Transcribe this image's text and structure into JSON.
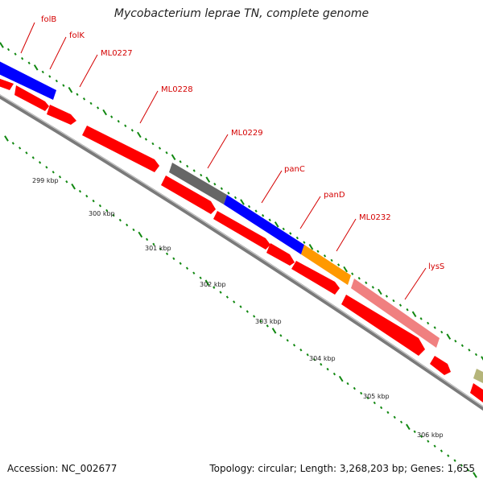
{
  "title": "Mycobacterium leprae TN, complete genome",
  "accession": "Accession: NC_002677",
  "summary": "Topology: circular; Length: 3,268,203 bp; Genes: 1,655",
  "kbp_labels": [
    "299 kbp",
    "300 kbp",
    "301 kbp",
    "302 kbp",
    "303 kbp",
    "304 kbp",
    "305 kbp",
    "306 kbp"
  ],
  "gene_labels": [
    "folB",
    "folK",
    "ML0227",
    "ML0228",
    "ML0229",
    "panC",
    "panD",
    "ML0232",
    "lysS"
  ],
  "colors": {
    "forward_cds": "#ff0000",
    "blue_feature": "#0000ff",
    "gray_feature": "#666666",
    "orange_feature": "#ff9900",
    "pink_feature": "#f08080",
    "olive_feature": "#b5b57a",
    "label": "#d40000",
    "tick": "#118811",
    "backbone": "#777777"
  }
}
